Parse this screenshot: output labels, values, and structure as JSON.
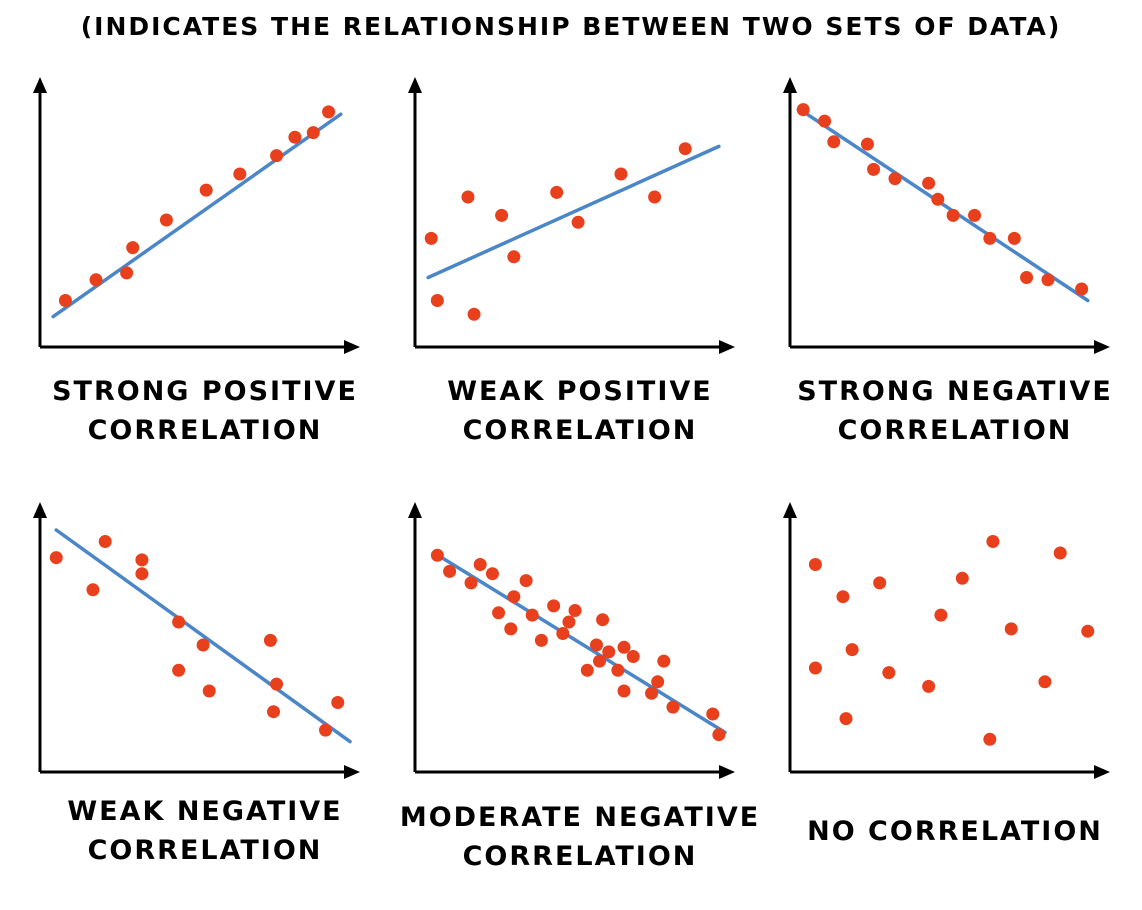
{
  "header": {
    "title": "(INDICATES THE RELATIONSHIP BETWEEN TWO SETS OF DATA)"
  },
  "colors": {
    "point": "#e8401c",
    "line": "#4a86c8",
    "axis": "#000000"
  },
  "chart_data": [
    {
      "type": "scatter",
      "title_lines": [
        "STRONG POSITIVE",
        "CORRELATION"
      ],
      "xlim": [
        0,
        100
      ],
      "ylim": [
        0,
        100
      ],
      "points": [
        [
          7,
          15
        ],
        [
          17,
          24
        ],
        [
          27,
          27
        ],
        [
          29,
          38
        ],
        [
          40,
          50
        ],
        [
          53,
          63
        ],
        [
          64,
          70
        ],
        [
          76,
          78
        ],
        [
          82,
          86
        ],
        [
          88,
          88
        ],
        [
          93,
          97
        ]
      ],
      "trendline": [
        [
          3,
          8
        ],
        [
          97,
          96
        ]
      ]
    },
    {
      "type": "scatter",
      "title_lines": [
        "WEAK POSITIVE",
        "CORRELATION"
      ],
      "xlim": [
        0,
        100
      ],
      "ylim": [
        0,
        100
      ],
      "points": [
        [
          4,
          42
        ],
        [
          6,
          15
        ],
        [
          16,
          60
        ],
        [
          18,
          9
        ],
        [
          27,
          52
        ],
        [
          31,
          34
        ],
        [
          45,
          62
        ],
        [
          52,
          49
        ],
        [
          66,
          70
        ],
        [
          77,
          60
        ],
        [
          87,
          81
        ]
      ],
      "trendline": [
        [
          3,
          25
        ],
        [
          98,
          82
        ]
      ]
    },
    {
      "type": "scatter",
      "title_lines": [
        "STRONG NEGATIVE",
        "CORRELATION"
      ],
      "xlim": [
        0,
        100
      ],
      "ylim": [
        0,
        100
      ],
      "points": [
        [
          3,
          98
        ],
        [
          10,
          93
        ],
        [
          13,
          84
        ],
        [
          24,
          83
        ],
        [
          26,
          72
        ],
        [
          33,
          68
        ],
        [
          44,
          66
        ],
        [
          47,
          59
        ],
        [
          52,
          52
        ],
        [
          59,
          52
        ],
        [
          64,
          42
        ],
        [
          72,
          42
        ],
        [
          76,
          25
        ],
        [
          83,
          24
        ],
        [
          94,
          20
        ]
      ],
      "trendline": [
        [
          2,
          98
        ],
        [
          96,
          15
        ]
      ]
    },
    {
      "type": "scatter",
      "title_lines": [
        "WEAK NEGATIVE",
        "CORRELATION"
      ],
      "xlim": [
        0,
        100
      ],
      "ylim": [
        0,
        100
      ],
      "points": [
        [
          4,
          88
        ],
        [
          16,
          74
        ],
        [
          20,
          95
        ],
        [
          32,
          87
        ],
        [
          32,
          81
        ],
        [
          44,
          60
        ],
        [
          44,
          39
        ],
        [
          52,
          50
        ],
        [
          54,
          30
        ],
        [
          74,
          52
        ],
        [
          76,
          33
        ],
        [
          75,
          21
        ],
        [
          92,
          13
        ],
        [
          96,
          25
        ]
      ],
      "trendline": [
        [
          4,
          100
        ],
        [
          100,
          8
        ]
      ]
    },
    {
      "type": "scatter",
      "title_lines": [
        "MODERATE NEGATIVE",
        "CORRELATION"
      ],
      "xlim": [
        0,
        100
      ],
      "ylim": [
        0,
        100
      ],
      "points": [
        [
          6,
          89
        ],
        [
          10,
          82
        ],
        [
          17,
          77
        ],
        [
          20,
          85
        ],
        [
          24,
          81
        ],
        [
          26,
          64
        ],
        [
          30,
          57
        ],
        [
          31,
          71
        ],
        [
          35,
          78
        ],
        [
          37,
          63
        ],
        [
          40,
          52
        ],
        [
          44,
          67
        ],
        [
          47,
          55
        ],
        [
          49,
          60
        ],
        [
          51,
          65
        ],
        [
          55,
          39
        ],
        [
          58,
          50
        ],
        [
          59,
          43
        ],
        [
          60,
          61
        ],
        [
          62,
          47
        ],
        [
          65,
          39
        ],
        [
          67,
          30
        ],
        [
          67,
          49
        ],
        [
          70,
          45
        ],
        [
          76,
          29
        ],
        [
          78,
          34
        ],
        [
          80,
          43
        ],
        [
          83,
          23
        ],
        [
          96,
          20
        ],
        [
          98,
          11
        ]
      ],
      "trendline": [
        [
          5,
          90
        ],
        [
          100,
          12
        ]
      ]
    },
    {
      "type": "scatter",
      "title_lines": [
        "NO CORRELATION"
      ],
      "xlim": [
        0,
        100
      ],
      "ylim": [
        0,
        100
      ],
      "points": [
        [
          7,
          85
        ],
        [
          7,
          40
        ],
        [
          16,
          71
        ],
        [
          17,
          18
        ],
        [
          19,
          48
        ],
        [
          28,
          77
        ],
        [
          31,
          38
        ],
        [
          44,
          32
        ],
        [
          48,
          63
        ],
        [
          55,
          79
        ],
        [
          64,
          9
        ],
        [
          65,
          95
        ],
        [
          71,
          57
        ],
        [
          82,
          34
        ],
        [
          87,
          90
        ],
        [
          96,
          56
        ]
      ],
      "trendline": null
    }
  ]
}
